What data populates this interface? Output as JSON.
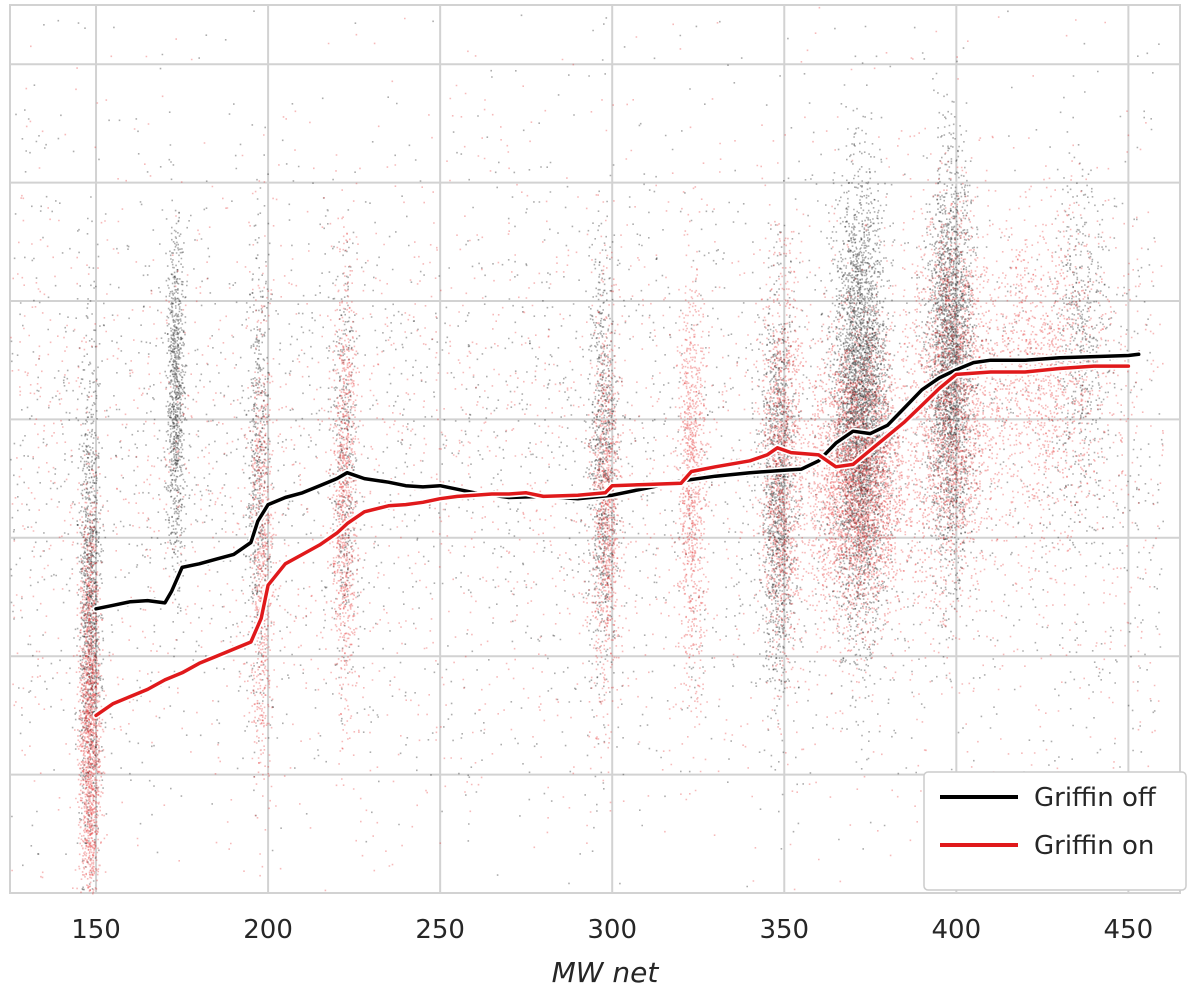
{
  "chart_data": {
    "type": "scatter",
    "xlabel": "MW net",
    "ylabel": "",
    "title": "",
    "xlim": [
      125,
      465
    ],
    "ylim": [
      0,
      7.5
    ],
    "x_ticks": [
      150,
      200,
      250,
      300,
      350,
      400,
      450
    ],
    "y_gridlines": [
      1,
      2,
      3,
      4,
      5,
      6,
      7
    ],
    "grid": true,
    "legend": "bottom-right",
    "colors": {
      "off": "#000000",
      "on": "#e0191b",
      "grid": "#d2d2d2"
    },
    "clusters": [
      {
        "x": 148,
        "y": 1.4,
        "sx": 1.5,
        "sy": 0.9,
        "n": 1700,
        "series": "on"
      },
      {
        "x": 148,
        "y": 2.4,
        "sx": 1.5,
        "sy": 1.0,
        "n": 1100,
        "series": "off"
      },
      {
        "x": 173,
        "y": 4.2,
        "sx": 1.3,
        "sy": 0.7,
        "n": 900,
        "series": "off"
      },
      {
        "x": 197,
        "y": 3.5,
        "sx": 1.6,
        "sy": 0.9,
        "n": 500,
        "series": "off"
      },
      {
        "x": 198,
        "y": 2.8,
        "sx": 1.6,
        "sy": 0.9,
        "n": 700,
        "series": "on"
      },
      {
        "x": 222,
        "y": 3.4,
        "sx": 1.8,
        "sy": 0.9,
        "n": 900,
        "series": "on"
      },
      {
        "x": 222,
        "y": 3.6,
        "sx": 1.8,
        "sy": 0.9,
        "n": 400,
        "series": "off"
      },
      {
        "x": 297,
        "y": 3.7,
        "sx": 2.0,
        "sy": 0.9,
        "n": 800,
        "series": "off"
      },
      {
        "x": 298,
        "y": 3.2,
        "sx": 2.0,
        "sy": 0.8,
        "n": 900,
        "series": "on"
      },
      {
        "x": 323,
        "y": 3.5,
        "sx": 2.0,
        "sy": 0.8,
        "n": 900,
        "series": "on"
      },
      {
        "x": 348,
        "y": 3.4,
        "sx": 2.5,
        "sy": 0.8,
        "n": 1200,
        "series": "off"
      },
      {
        "x": 349,
        "y": 3.6,
        "sx": 3.0,
        "sy": 0.8,
        "n": 1200,
        "series": "on"
      },
      {
        "x": 372,
        "y": 4.1,
        "sx": 3.8,
        "sy": 0.9,
        "n": 3800,
        "series": "off"
      },
      {
        "x": 371,
        "y": 3.5,
        "sx": 7.0,
        "sy": 0.6,
        "n": 3300,
        "series": "on"
      },
      {
        "x": 398,
        "y": 4.5,
        "sx": 3.2,
        "sy": 0.8,
        "n": 2500,
        "series": "off"
      },
      {
        "x": 398,
        "y": 4.2,
        "sx": 5.5,
        "sy": 0.8,
        "n": 2000,
        "series": "on"
      },
      {
        "x": 425,
        "y": 4.4,
        "sx": 10.0,
        "sy": 0.6,
        "n": 1200,
        "series": "on"
      },
      {
        "x": 436,
        "y": 4.6,
        "sx": 4.0,
        "sy": 0.7,
        "n": 500,
        "series": "off"
      }
    ],
    "background_points": {
      "n": 6000,
      "x_range": [
        125,
        460
      ],
      "y_center": 3.6,
      "y_sd": 1.5
    },
    "series": [
      {
        "name": "Griffin off",
        "color": "#000000",
        "x": [
          150,
          155,
          160,
          165,
          170,
          172,
          175,
          180,
          185,
          190,
          195,
          197,
          200,
          205,
          210,
          215,
          220,
          223,
          228,
          235,
          240,
          245,
          250,
          260,
          270,
          280,
          290,
          300,
          310,
          320,
          330,
          340,
          350,
          355,
          360,
          365,
          370,
          375,
          380,
          385,
          390,
          395,
          400,
          405,
          410,
          420,
          430,
          440,
          450,
          453
        ],
        "y": [
          2.4,
          2.43,
          2.46,
          2.47,
          2.45,
          2.55,
          2.75,
          2.78,
          2.82,
          2.86,
          2.96,
          3.14,
          3.28,
          3.34,
          3.38,
          3.44,
          3.5,
          3.55,
          3.5,
          3.47,
          3.44,
          3.43,
          3.44,
          3.38,
          3.34,
          3.35,
          3.33,
          3.36,
          3.42,
          3.48,
          3.52,
          3.55,
          3.57,
          3.58,
          3.65,
          3.8,
          3.9,
          3.88,
          3.95,
          4.1,
          4.25,
          4.35,
          4.42,
          4.48,
          4.5,
          4.5,
          4.52,
          4.53,
          4.54,
          4.55
        ]
      },
      {
        "name": "Griffin on",
        "color": "#e0191b",
        "x": [
          150,
          155,
          160,
          165,
          170,
          175,
          180,
          185,
          190,
          195,
          198,
          200,
          205,
          210,
          215,
          220,
          223,
          228,
          235,
          240,
          245,
          250,
          255,
          260,
          265,
          270,
          275,
          280,
          290,
          298,
          300,
          310,
          320,
          323,
          330,
          340,
          345,
          348,
          352,
          360,
          365,
          370,
          375,
          380,
          385,
          390,
          395,
          400,
          410,
          420,
          430,
          440,
          450
        ],
        "y": [
          1.5,
          1.6,
          1.66,
          1.72,
          1.8,
          1.86,
          1.94,
          2.0,
          2.06,
          2.12,
          2.32,
          2.6,
          2.78,
          2.86,
          2.94,
          3.04,
          3.12,
          3.22,
          3.27,
          3.28,
          3.3,
          3.33,
          3.35,
          3.36,
          3.37,
          3.37,
          3.38,
          3.35,
          3.36,
          3.38,
          3.44,
          3.45,
          3.46,
          3.56,
          3.6,
          3.65,
          3.7,
          3.76,
          3.72,
          3.7,
          3.6,
          3.62,
          3.74,
          3.86,
          3.98,
          4.12,
          4.26,
          4.38,
          4.4,
          4.4,
          4.43,
          4.45,
          4.45
        ]
      }
    ]
  }
}
